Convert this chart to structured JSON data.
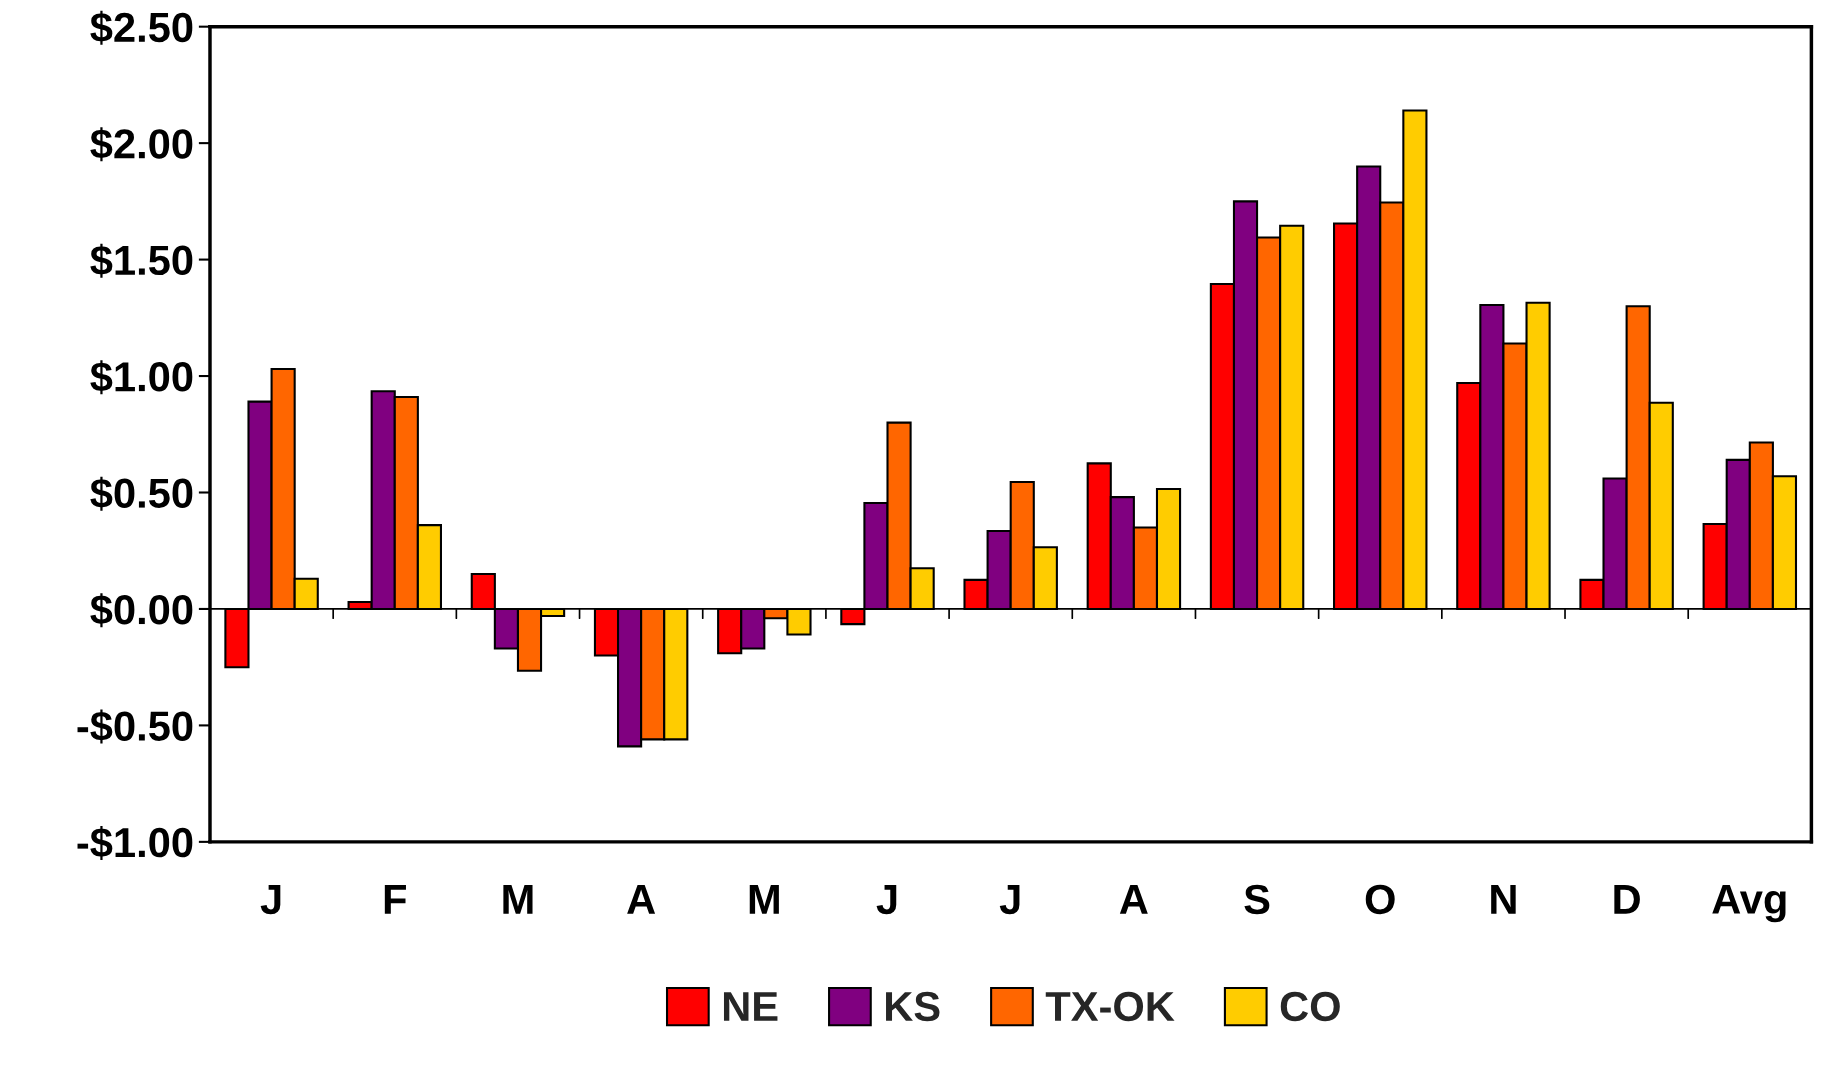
{
  "chart_data": {
    "type": "bar",
    "categories": [
      "J",
      "F",
      "M",
      "A",
      "M",
      "J",
      "J",
      "A",
      "S",
      "O",
      "N",
      "D",
      "Avg"
    ],
    "series": [
      {
        "name": "NE",
        "color": "#ff0000",
        "values": [
          -0.25,
          0.03,
          0.15,
          -0.2,
          -0.19,
          -0.065,
          0.125,
          0.625,
          1.395,
          1.655,
          0.97,
          0.125,
          0.365
        ]
      },
      {
        "name": "KS",
        "color": "#800080",
        "values": [
          0.89,
          0.935,
          -0.17,
          -0.59,
          -0.17,
          0.455,
          0.335,
          0.48,
          1.75,
          1.9,
          1.305,
          0.56,
          0.64
        ]
      },
      {
        "name": "TX-OK",
        "color": "#ff6600",
        "values": [
          1.03,
          0.91,
          -0.265,
          -0.56,
          -0.04,
          0.8,
          0.545,
          0.35,
          1.595,
          1.745,
          1.14,
          1.3,
          0.715
        ]
      },
      {
        "name": "CO",
        "color": "#ffcc00",
        "values": [
          0.13,
          0.36,
          -0.03,
          -0.56,
          -0.11,
          0.175,
          0.265,
          0.515,
          1.645,
          2.14,
          1.315,
          0.885,
          0.57
        ]
      }
    ],
    "ylim": [
      -1.0,
      2.5
    ],
    "yticks": [
      {
        "value": -1.0,
        "label": "-$1.00"
      },
      {
        "value": -0.5,
        "label": "-$0.50"
      },
      {
        "value": 0.0,
        "label": "$0.00"
      },
      {
        "value": 0.5,
        "label": "$0.50"
      },
      {
        "value": 1.0,
        "label": "$1.00"
      },
      {
        "value": 1.5,
        "label": "$1.50"
      },
      {
        "value": 2.0,
        "label": "$2.00"
      },
      {
        "value": 2.5,
        "label": "$2.50"
      }
    ],
    "ref_lines": [
      {
        "axis": "y",
        "value": 0,
        "color": "#000000"
      }
    ],
    "legend": "bottom"
  }
}
